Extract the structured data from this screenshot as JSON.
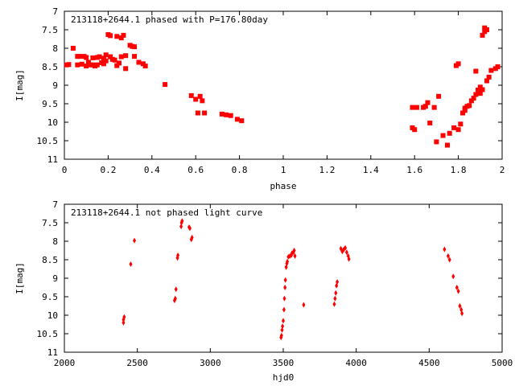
{
  "chart_data": [
    {
      "type": "scatter",
      "title": "213118+2644.1 phased with P=176.80day",
      "xlabel": "phase",
      "ylabel": "I[mag]",
      "xlim": [
        0,
        2
      ],
      "ylim": [
        7,
        11
      ],
      "y_inverted": true,
      "x_ticks": [
        "0",
        "0.2",
        "0.4",
        "0.6",
        "0.8",
        "1",
        "1.2",
        "1.4",
        "1.6",
        "1.8",
        "2"
      ],
      "y_ticks": [
        "7",
        "7.5",
        "8",
        "8.5",
        "9",
        "9.5",
        "10",
        "10.5",
        "11"
      ],
      "x_tick_values": [
        0,
        0.2,
        0.4,
        0.6,
        0.8,
        1,
        1.2,
        1.4,
        1.6,
        1.8,
        2
      ],
      "y_tick_values": [
        7,
        7.5,
        8,
        8.5,
        9,
        9.5,
        10,
        10.5,
        11
      ],
      "color": "#ff0000",
      "marker": "square",
      "grid": false,
      "series": [
        {
          "points": [
            [
              0.01,
              8.45
            ],
            [
              0.02,
              8.44
            ],
            [
              0.04,
              8.0
            ],
            [
              0.06,
              8.45
            ],
            [
              0.06,
              8.22
            ],
            [
              0.07,
              8.22
            ],
            [
              0.08,
              8.43
            ],
            [
              0.09,
              8.22
            ],
            [
              0.1,
              8.25
            ],
            [
              0.1,
              8.48
            ],
            [
              0.11,
              8.38
            ],
            [
              0.12,
              8.45
            ],
            [
              0.13,
              8.26
            ],
            [
              0.13,
              8.45
            ],
            [
              0.14,
              8.48
            ],
            [
              0.15,
              8.25
            ],
            [
              0.15,
              8.45
            ],
            [
              0.16,
              8.23
            ],
            [
              0.17,
              8.39
            ],
            [
              0.18,
              8.27
            ],
            [
              0.18,
              8.42
            ],
            [
              0.19,
              8.18
            ],
            [
              0.19,
              8.34
            ],
            [
              0.2,
              7.63
            ],
            [
              0.21,
              8.23
            ],
            [
              0.21,
              7.66
            ],
            [
              0.22,
              8.3
            ],
            [
              0.23,
              8.32
            ],
            [
              0.24,
              7.68
            ],
            [
              0.24,
              8.47
            ],
            [
              0.25,
              8.4
            ],
            [
              0.26,
              8.23
            ],
            [
              0.26,
              7.72
            ],
            [
              0.27,
              7.65
            ],
            [
              0.28,
              8.2
            ],
            [
              0.28,
              8.55
            ],
            [
              0.3,
              7.92
            ],
            [
              0.31,
              7.95
            ],
            [
              0.32,
              7.96
            ],
            [
              0.32,
              8.22
            ],
            [
              0.34,
              8.38
            ],
            [
              0.36,
              8.42
            ],
            [
              0.37,
              8.48
            ],
            [
              0.46,
              8.98
            ],
            [
              0.58,
              9.28
            ],
            [
              0.6,
              9.38
            ],
            [
              0.61,
              9.75
            ],
            [
              0.62,
              9.3
            ],
            [
              0.63,
              9.42
            ],
            [
              0.64,
              9.75
            ],
            [
              0.72,
              9.78
            ],
            [
              0.74,
              9.8
            ],
            [
              0.76,
              9.82
            ],
            [
              0.79,
              9.92
            ],
            [
              0.81,
              9.96
            ],
            [
              1.59,
              9.6
            ],
            [
              1.59,
              10.15
            ],
            [
              1.6,
              10.2
            ],
            [
              1.61,
              9.6
            ],
            [
              1.64,
              9.6
            ],
            [
              1.65,
              9.57
            ],
            [
              1.66,
              9.47
            ],
            [
              1.67,
              10.02
            ],
            [
              1.69,
              9.6
            ],
            [
              1.7,
              10.53
            ],
            [
              1.71,
              9.3
            ],
            [
              1.73,
              10.36
            ],
            [
              1.75,
              10.62
            ],
            [
              1.76,
              10.3
            ],
            [
              1.78,
              10.15
            ],
            [
              1.79,
              8.47
            ],
            [
              1.8,
              10.2
            ],
            [
              1.8,
              8.42
            ],
            [
              1.81,
              10.05
            ],
            [
              1.82,
              9.75
            ],
            [
              1.83,
              9.68
            ],
            [
              1.83,
              9.62
            ],
            [
              1.84,
              9.57
            ],
            [
              1.85,
              9.55
            ],
            [
              1.86,
              9.42
            ],
            [
              1.87,
              9.35
            ],
            [
              1.88,
              8.62
            ],
            [
              1.88,
              9.25
            ],
            [
              1.89,
              9.13
            ],
            [
              1.89,
              9.15
            ],
            [
              1.9,
              9.22
            ],
            [
              1.9,
              9.05
            ],
            [
              1.91,
              9.12
            ],
            [
              1.91,
              7.65
            ],
            [
              1.92,
              7.55
            ],
            [
              1.92,
              7.45
            ],
            [
              1.93,
              8.88
            ],
            [
              1.93,
              7.5
            ],
            [
              1.94,
              8.78
            ],
            [
              1.95,
              8.6
            ],
            [
              1.97,
              8.55
            ],
            [
              1.98,
              8.5
            ]
          ]
        }
      ]
    },
    {
      "type": "scatter",
      "title": "213118+2644.1 not phased light curve",
      "xlabel": "hjd0",
      "ylabel": "I[mag]",
      "xlim": [
        2000,
        5000
      ],
      "ylim": [
        7,
        11
      ],
      "y_inverted": true,
      "x_ticks": [
        "2000",
        "2500",
        "3000",
        "3500",
        "4000",
        "4500",
        "5000"
      ],
      "y_ticks": [
        "7",
        "7.5",
        "8",
        "8.5",
        "9",
        "9.5",
        "10",
        "10.5",
        "11"
      ],
      "x_tick_values": [
        2000,
        2500,
        3000,
        3500,
        4000,
        4500,
        5000
      ],
      "y_tick_values": [
        7,
        7.5,
        8,
        8.5,
        9,
        9.5,
        10,
        10.5,
        11
      ],
      "color": "#ff0000",
      "marker": "diamond",
      "grid": false,
      "series": [
        {
          "points": [
            [
              2405,
              10.2
            ],
            [
              2405,
              10.12
            ],
            [
              2410,
              10.05
            ],
            [
              2455,
              8.62
            ],
            [
              2480,
              7.98
            ],
            [
              2755,
              9.6
            ],
            [
              2760,
              9.55
            ],
            [
              2765,
              9.3
            ],
            [
              2775,
              8.45
            ],
            [
              2778,
              8.38
            ],
            [
              2800,
              7.6
            ],
            [
              2803,
              7.5
            ],
            [
              2807,
              7.45
            ],
            [
              2855,
              7.62
            ],
            [
              2860,
              7.65
            ],
            [
              2870,
              7.95
            ],
            [
              2875,
              7.9
            ],
            [
              3485,
              10.6
            ],
            [
              3488,
              10.55
            ],
            [
              3492,
              10.4
            ],
            [
              3495,
              10.3
            ],
            [
              3500,
              10.15
            ],
            [
              3505,
              9.85
            ],
            [
              3508,
              9.55
            ],
            [
              3512,
              9.25
            ],
            [
              3515,
              9.05
            ],
            [
              3520,
              8.7
            ],
            [
              3525,
              8.6
            ],
            [
              3528,
              8.55
            ],
            [
              3535,
              8.42
            ],
            [
              3545,
              8.4
            ],
            [
              3555,
              8.38
            ],
            [
              3560,
              8.32
            ],
            [
              3570,
              8.3
            ],
            [
              3575,
              8.25
            ],
            [
              3580,
              8.4
            ],
            [
              3640,
              9.72
            ],
            [
              3850,
              9.7
            ],
            [
              3855,
              9.55
            ],
            [
              3860,
              9.4
            ],
            [
              3865,
              9.2
            ],
            [
              3870,
              9.1
            ],
            [
              3895,
              8.2
            ],
            [
              3905,
              8.28
            ],
            [
              3915,
              8.22
            ],
            [
              3925,
              8.18
            ],
            [
              3935,
              8.3
            ],
            [
              3945,
              8.4
            ],
            [
              3950,
              8.48
            ],
            [
              4605,
              8.22
            ],
            [
              4630,
              8.4
            ],
            [
              4640,
              8.5
            ],
            [
              4665,
              8.95
            ],
            [
              4690,
              9.25
            ],
            [
              4700,
              9.35
            ],
            [
              4710,
              9.75
            ],
            [
              4720,
              9.85
            ],
            [
              4725,
              9.95
            ]
          ]
        }
      ]
    }
  ]
}
